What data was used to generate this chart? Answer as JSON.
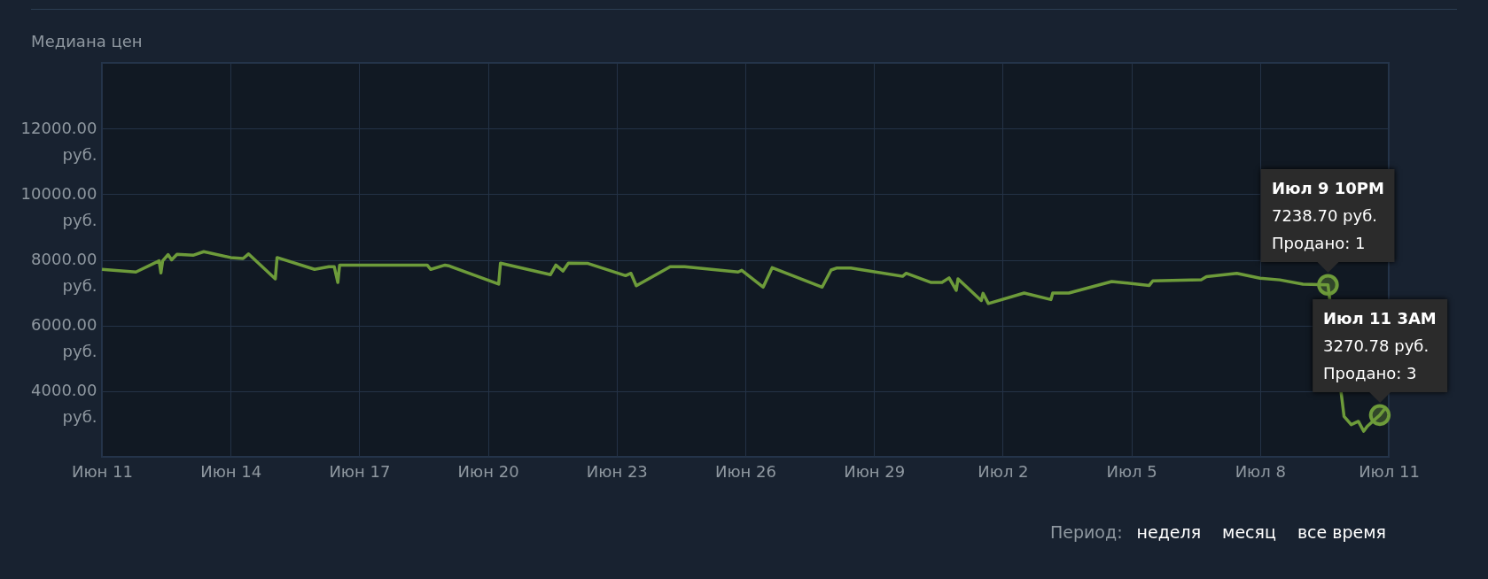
{
  "chart_data": {
    "type": "line",
    "title": "Медиана цен",
    "x": [
      "--06-11T08:00",
      "--06-12T03:00",
      "--06-12T16:00",
      "--06-12T17:00",
      "--06-12T18:00",
      "--06-12T21:00",
      "--06-12T23:00",
      "--06-13T02:00",
      "--06-13T11:00",
      "--06-13T17:00",
      "--06-14T08:00",
      "--06-14T15:00",
      "--06-14T18:00",
      "--06-15T09:00",
      "--06-15T10:00",
      "--06-16T07:00",
      "--06-16T15:00",
      "--06-16T18:00",
      "--06-16T20:00",
      "--06-16T21:00",
      "--06-18T22:00",
      "--06-19T00:00",
      "--06-19T08:00",
      "--06-19T10:00",
      "--06-20T14:00",
      "--06-20T15:00",
      "--06-21T19:00",
      "--06-21T22:00",
      "--06-22T02:00",
      "--06-22T05:00",
      "--06-22T16:00",
      "--06-23T13:00",
      "--06-23T16:00",
      "--06-23T19:00",
      "--06-24T14:00",
      "--06-24T22:00",
      "--06-26T04:00",
      "--06-26T06:00",
      "--06-26T18:00",
      "--06-26T23:00",
      "--06-28T03:00",
      "--06-28T08:00",
      "--06-28T11:00",
      "--06-28T19:00",
      "--06-30T00:00",
      "--06-30T02:00",
      "--06-30T16:00",
      "--06-30T22:00",
      "--07-01T02:00",
      "--07-01T06:00",
      "--07-01T07:00",
      "--07-01T20:00",
      "--07-01T21:00",
      "--07-02T00:00",
      "--07-02T20:00",
      "--07-03T11:00",
      "--07-03T12:00",
      "--07-03T21:00",
      "--07-04T21:00",
      "--07-05T18:00",
      "--07-05T20:00",
      "--07-06T23:00",
      "--07-07T02:00",
      "--07-07T19:00",
      "--07-08T08:00",
      "--07-08T19:00",
      "--07-09T08:00",
      "--07-09T22:00",
      "--07-10T07:00",
      "--07-10T11:00",
      "--07-10T15:00",
      "--07-10T18:00",
      "--07-10T20:00",
      "--07-11T03:00",
      "--07-11T06:00"
    ],
    "series": [
      {
        "color": "#6d9b3a",
        "values": [
          7710,
          7630,
          7970,
          7600,
          7970,
          8160,
          8000,
          8170,
          8140,
          8250,
          8070,
          8040,
          8180,
          7420,
          8070,
          7710,
          7790,
          7790,
          7310,
          7840,
          7840,
          7710,
          7840,
          7820,
          7260,
          7900,
          7550,
          7840,
          7660,
          7900,
          7890,
          7520,
          7590,
          7210,
          7790,
          7790,
          7630,
          7680,
          7170,
          7760,
          7170,
          7690,
          7750,
          7750,
          7500,
          7590,
          7310,
          7310,
          7450,
          7070,
          7420,
          6760,
          6980,
          6670,
          6990,
          6790,
          6990,
          6990,
          7340,
          7220,
          7360,
          7390,
          7490,
          7590,
          7440,
          7390,
          7260,
          7238.7,
          3230,
          2980,
          3080,
          2780,
          2930,
          3270.78,
          3480
        ]
      }
    ],
    "xlim": [
      "--06-11T08:00",
      "--07-11T08:00"
    ],
    "xticks": [
      {
        "value": "--06-11T08:00",
        "label": "Июн 11"
      },
      {
        "value": "--06-14T08:00",
        "label": "Июн 14"
      },
      {
        "value": "--06-17T08:00",
        "label": "Июн 17"
      },
      {
        "value": "--06-20T08:00",
        "label": "Июн 20"
      },
      {
        "value": "--06-23T08:00",
        "label": "Июн 23"
      },
      {
        "value": "--06-26T08:00",
        "label": "Июн 26"
      },
      {
        "value": "--06-29T08:00",
        "label": "Июн 29"
      },
      {
        "value": "--07-02T08:00",
        "label": "Июл 2"
      },
      {
        "value": "--07-05T08:00",
        "label": "Июл 5"
      },
      {
        "value": "--07-08T08:00",
        "label": "Июл 8"
      },
      {
        "value": "--07-11T08:00",
        "label": "Июл 11"
      }
    ],
    "ylim": [
      2000,
      14000
    ],
    "yticks": [
      {
        "value": 4000,
        "label": "4000.00 руб."
      },
      {
        "value": 6000,
        "label": "6000.00 руб."
      },
      {
        "value": 8000,
        "label": "8000.00 руб."
      },
      {
        "value": 10000,
        "label": "10000.00 руб."
      },
      {
        "value": 12000,
        "label": "12000.00 руб."
      }
    ],
    "grid": true,
    "annotations": [
      {
        "text": "Июл 9 10PM\n7238.70 руб.\nПродано: 1",
        "x": "--07-09T22:00",
        "y": 7238.7
      },
      {
        "text": "Июл 11 3AM\n3270.78 руб.\nПродано: 3",
        "x": "--07-11T03:00",
        "y": 3270.78
      },
      "Период:",
      "неделя",
      "месяц",
      "все время"
    ]
  }
}
